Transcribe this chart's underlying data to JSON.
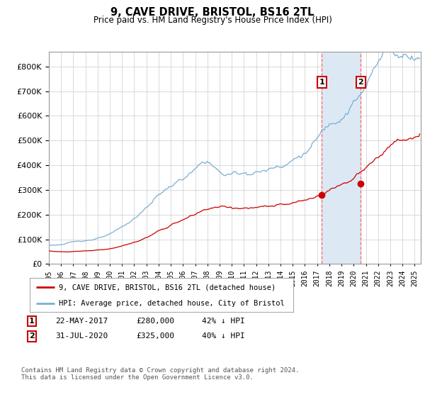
{
  "title": "9, CAVE DRIVE, BRISTOL, BS16 2TL",
  "subtitle": "Price paid vs. HM Land Registry's House Price Index (HPI)",
  "yticks": [
    0,
    100000,
    200000,
    300000,
    400000,
    500000,
    600000,
    700000,
    800000
  ],
  "ylim": [
    0,
    860000
  ],
  "xlim_start": 1995.0,
  "xlim_end": 2025.5,
  "hpi_color": "#7bafd4",
  "price_color": "#cc0000",
  "vline_color": "#ff6666",
  "shade_color": "#dce9f5",
  "purchase1_x": 2017.387,
  "purchase1_y": 280000,
  "purchase2_x": 2020.581,
  "purchase2_y": 325000,
  "purchase1_date": "22-MAY-2017",
  "purchase1_price": "£280,000",
  "purchase1_hpi": "42% ↓ HPI",
  "purchase2_date": "31-JUL-2020",
  "purchase2_price": "£325,000",
  "purchase2_hpi": "40% ↓ HPI",
  "legend_line1": "9, CAVE DRIVE, BRISTOL, BS16 2TL (detached house)",
  "legend_line2": "HPI: Average price, detached house, City of Bristol",
  "footnote": "Contains HM Land Registry data © Crown copyright and database right 2024.\nThis data is licensed under the Open Government Licence v3.0.",
  "background_color": "#ffffff",
  "grid_color": "#cccccc"
}
